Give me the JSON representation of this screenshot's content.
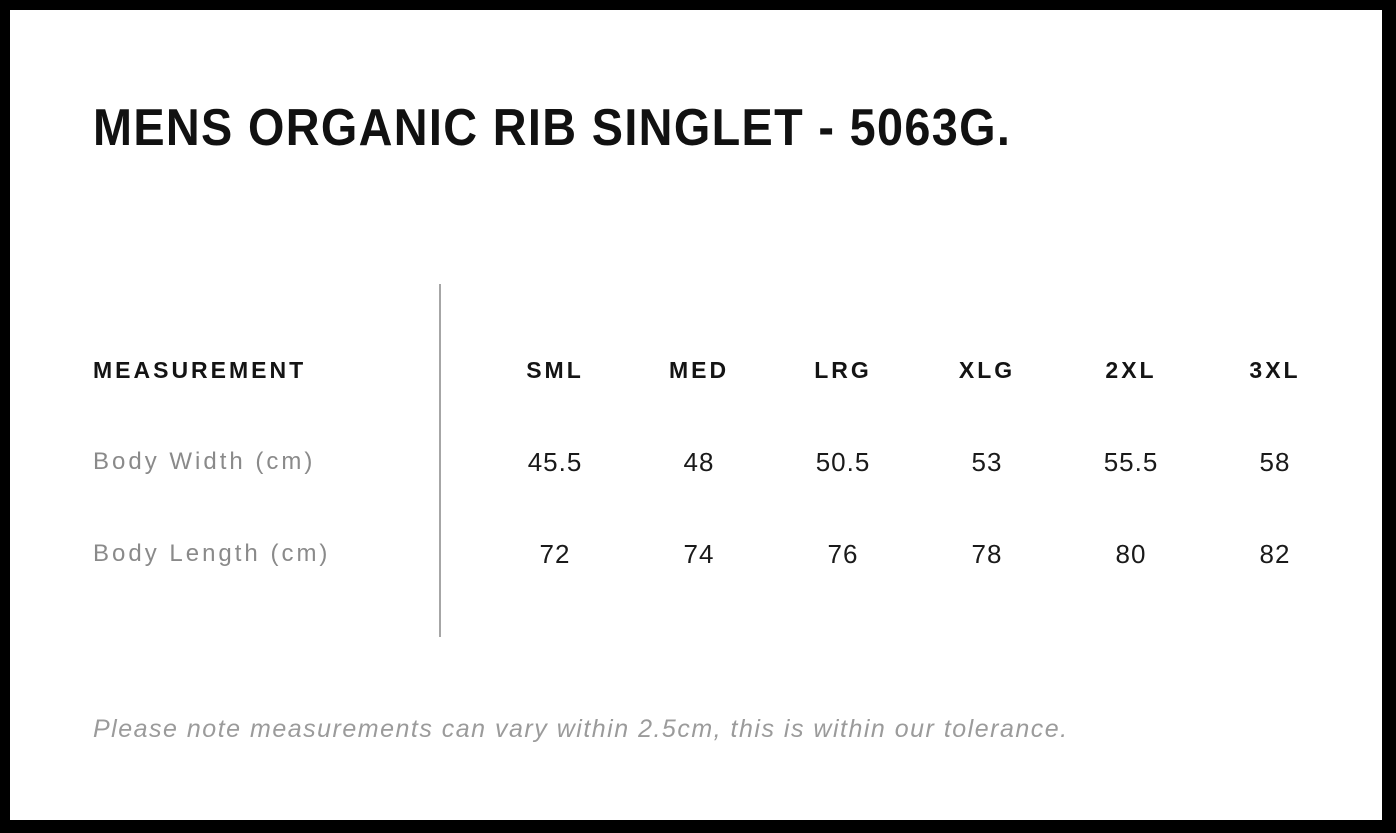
{
  "page": {
    "title": "MENS ORGANIC RIB SINGLET - 5063G.",
    "note": "Please note measurements can vary within 2.5cm, this is within our tolerance."
  },
  "table": {
    "header": [
      "MEASUREMENT",
      "SML",
      "MED",
      "LRG",
      "XLG",
      "2XL",
      "3XL"
    ],
    "rows": [
      {
        "label": "Body Width (cm)",
        "values": [
          "45.5",
          "48",
          "50.5",
          "53",
          "55.5",
          "58"
        ]
      },
      {
        "label": "Body Length (cm)",
        "values": [
          "72",
          "74",
          "76",
          "78",
          "80",
          "82"
        ]
      }
    ]
  },
  "colors": {
    "frame": "#000000",
    "heading_text": "#111111",
    "header_text": "#141414",
    "value_text": "#1a1a1a",
    "label_gray": "#8a8a8a",
    "note_gray": "#9b9b9b",
    "divider_gray": "#a6a6a6"
  }
}
